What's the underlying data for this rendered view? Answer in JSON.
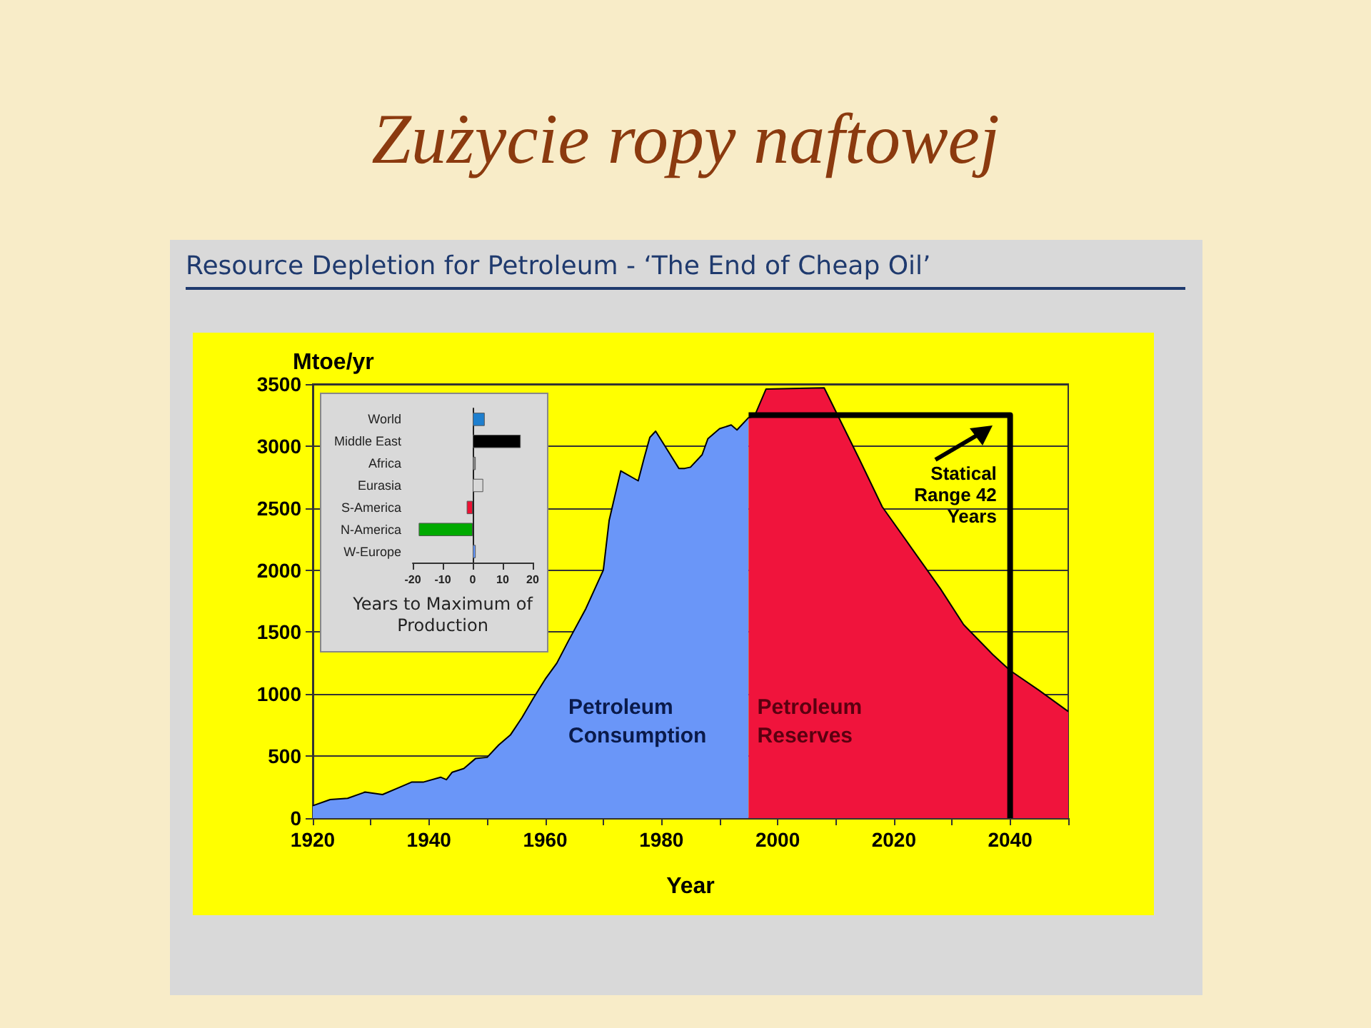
{
  "chart_data": [
    {
      "type": "area",
      "title": "Zużycie ropy naftowej",
      "subtitle": "Resource Depletion for Petroleum - ‘The End of Cheap Oil’",
      "xlabel": "Year",
      "ylabel": "Mtoe/yr",
      "xlim": [
        1920,
        2050
      ],
      "xticks": [
        1920,
        {
          "value": 1930,
          "label": null
        },
        1940,
        {
          "value": 1950,
          "label": null
        },
        1960,
        {
          "value": 1970,
          "label": null
        },
        1980,
        {
          "value": 1990,
          "label": null
        },
        2000,
        {
          "value": 2010,
          "label": null
        },
        2020,
        {
          "value": 2030,
          "label": null
        },
        2040,
        {
          "value": 2050,
          "label": null
        }
      ],
      "ylim": [
        0,
        3500
      ],
      "yticks": [
        0,
        500,
        1000,
        1500,
        2000,
        2500,
        3000,
        3500
      ],
      "grid": "y",
      "legend": false,
      "marker": "none",
      "annotations": [
        "Statical Range 42 Years"
      ],
      "series": [
        {
          "name": "Petroleum Consumption",
          "color": "#6a96f8",
          "x": [
            1920,
            1923,
            1926,
            1929,
            1932,
            1935,
            1937,
            1939,
            1942,
            1943,
            1944,
            1946,
            1948,
            1950,
            1952,
            1954,
            1956,
            1958,
            1960,
            1962,
            1964,
            1967,
            1970,
            1971,
            1973,
            1976,
            1977,
            1978,
            1979,
            1981,
            1983,
            1984,
            1985,
            1987,
            1988,
            1990,
            1992,
            1993,
            1995
          ],
          "values": [
            100,
            150,
            160,
            210,
            190,
            250,
            290,
            290,
            330,
            310,
            370,
            400,
            480,
            490,
            590,
            670,
            810,
            970,
            1120,
            1250,
            1430,
            1690,
            2000,
            2400,
            2800,
            2720,
            2900,
            3070,
            3120,
            2970,
            2820,
            2820,
            2830,
            2930,
            3060,
            3140,
            3170,
            3130,
            3230
          ]
        },
        {
          "name": "Petroleum Reserves",
          "color": "#f0143c",
          "x": [
            1995,
            1996,
            1998,
            2008,
            2010,
            2014,
            2018,
            2023,
            2028,
            2032,
            2037,
            2040,
            2045,
            2050
          ],
          "values": [
            3230,
            3240,
            3460,
            3470,
            3280,
            2900,
            2510,
            2180,
            1850,
            1560,
            1320,
            1190,
            1030,
            860
          ]
        },
        {
          "type": "line",
          "color": "#000000",
          "x": [
            1995,
            2040,
            2040
          ],
          "values": [
            3250,
            3250,
            0
          ]
        }
      ]
    },
    {
      "type": "bar",
      "orientation": "horizontal",
      "xlabel": "Years to Maximum of Production",
      "categories": [
        "World",
        "Middle East",
        "Africa",
        "Eurasia",
        "S-America",
        "N-America",
        "W-Europe"
      ],
      "values": [
        4,
        16,
        1,
        3.5,
        -2,
        -18,
        1
      ],
      "colors": [
        "#1e7fcf",
        "#000000",
        "#888888",
        "#d8d8d8",
        "#ee1133",
        "#00aa00",
        "#6699ff"
      ],
      "xlim": [
        -20,
        20
      ],
      "xticks": [
        -20,
        -10,
        0,
        10,
        20
      ],
      "legend": false
    }
  ]
}
